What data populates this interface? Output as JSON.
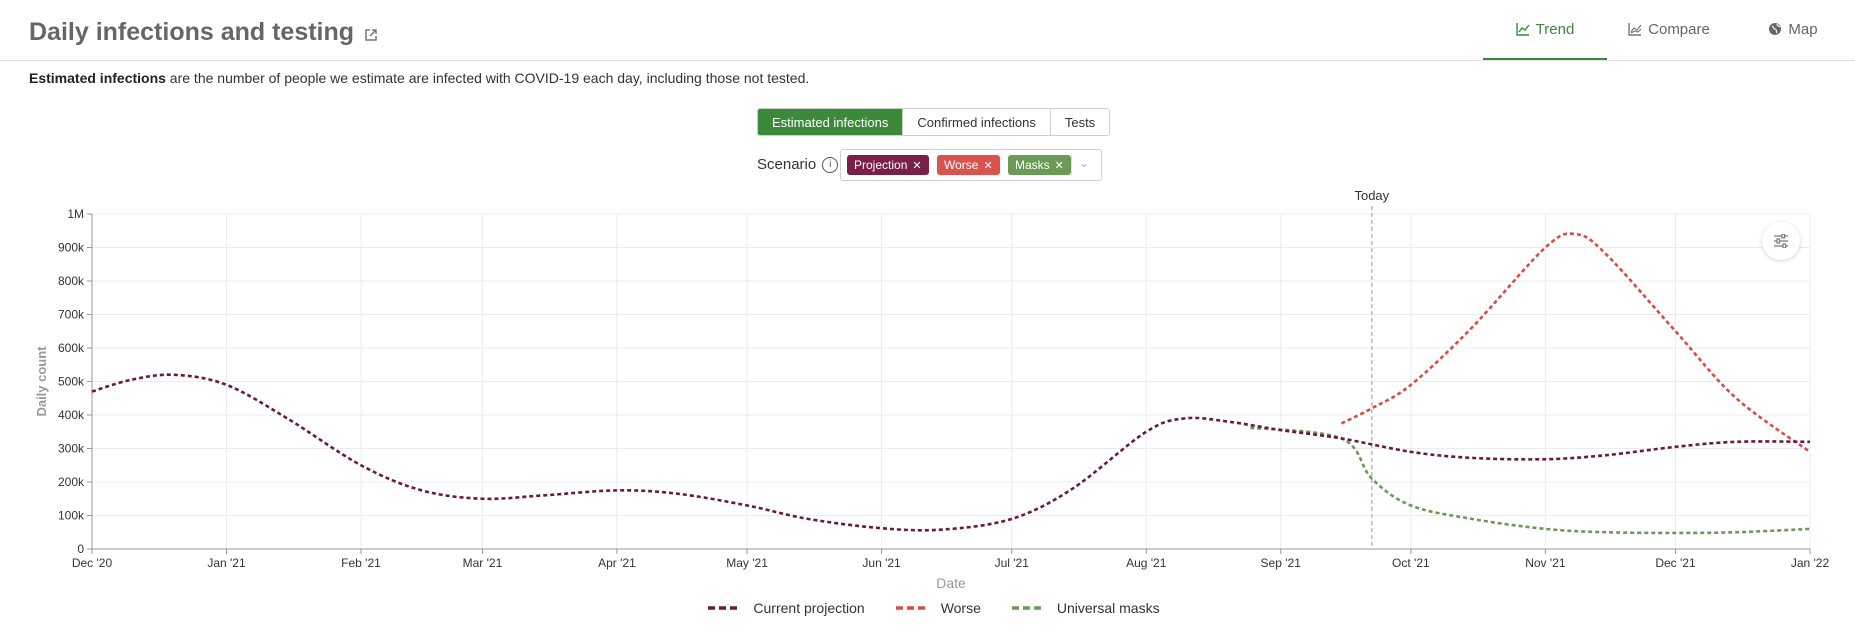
{
  "header": {
    "title": "Daily infections and testing",
    "tabs": [
      {
        "label": "Trend",
        "active": true
      },
      {
        "label": "Compare",
        "active": false
      },
      {
        "label": "Map",
        "active": false
      }
    ]
  },
  "description": {
    "bold": "Estimated infections",
    "rest": " are the number of people we estimate are infected with COVID-19 each day, including those not tested."
  },
  "metric_toggle": {
    "options": [
      "Estimated infections",
      "Confirmed infections",
      "Tests"
    ],
    "selected": "Estimated infections"
  },
  "scenario": {
    "label": "Scenario",
    "tags": [
      {
        "label": "Projection",
        "color": "#7a1f45"
      },
      {
        "label": "Worse",
        "color": "#d9534f"
      },
      {
        "label": "Masks",
        "color": "#6a9a55"
      }
    ]
  },
  "chart_data": {
    "type": "line",
    "xlabel": "Date",
    "ylabel": "Daily count",
    "ylim": [
      0,
      1000000
    ],
    "y_ticks": [
      "0",
      "100k",
      "200k",
      "300k",
      "400k",
      "500k",
      "600k",
      "700k",
      "800k",
      "900k",
      "1M"
    ],
    "x_ticks": [
      "Dec '20",
      "Jan '21",
      "Feb '21",
      "Mar '21",
      "Apr '21",
      "May '21",
      "Jun '21",
      "Jul '21",
      "Aug '21",
      "Sep '21",
      "Oct '21",
      "Nov '21",
      "Dec '21",
      "Jan '22"
    ],
    "x_range": [
      "2020-12-01",
      "2022-01-01"
    ],
    "today": {
      "label": "Today",
      "date": "2021-09-22"
    },
    "grid": true,
    "legend_position": "bottom-center",
    "series": [
      {
        "name": "Current projection",
        "color": "#6b1a3d",
        "x": [
          "2020-12-01",
          "2020-12-10",
          "2020-12-20",
          "2021-01-01",
          "2021-01-15",
          "2021-02-01",
          "2021-02-15",
          "2021-03-01",
          "2021-03-15",
          "2021-04-01",
          "2021-04-15",
          "2021-05-01",
          "2021-05-15",
          "2021-06-01",
          "2021-06-15",
          "2021-07-01",
          "2021-07-15",
          "2021-08-01",
          "2021-08-10",
          "2021-08-20",
          "2021-09-01",
          "2021-09-15",
          "2021-10-01",
          "2021-10-15",
          "2021-11-01",
          "2021-11-15",
          "2021-12-01",
          "2021-12-15",
          "2022-01-01"
        ],
        "values": [
          470000,
          505000,
          520000,
          490000,
          390000,
          250000,
          175000,
          150000,
          160000,
          175000,
          165000,
          130000,
          90000,
          62000,
          58000,
          90000,
          180000,
          350000,
          390000,
          380000,
          355000,
          330000,
          290000,
          272000,
          268000,
          280000,
          305000,
          320000,
          320000
        ]
      },
      {
        "name": "Worse",
        "color": "#e04844",
        "x": [
          "2021-09-15",
          "2021-09-22",
          "2021-10-01",
          "2021-10-15",
          "2021-11-01",
          "2021-11-08",
          "2021-11-15",
          "2021-12-01",
          "2021-12-15",
          "2022-01-01"
        ],
        "values": [
          375000,
          420000,
          490000,
          660000,
          900000,
          940000,
          880000,
          650000,
          450000,
          290000
        ]
      },
      {
        "name": "Universal masks",
        "color": "#6a9a55",
        "x": [
          "2021-08-25",
          "2021-09-15",
          "2021-09-22",
          "2021-10-01",
          "2021-10-15",
          "2021-11-01",
          "2021-11-15",
          "2021-12-01",
          "2021-12-15",
          "2022-01-01"
        ],
        "values": [
          362000,
          330000,
          210000,
          130000,
          90000,
          60000,
          50000,
          48000,
          50000,
          60000
        ]
      }
    ]
  }
}
